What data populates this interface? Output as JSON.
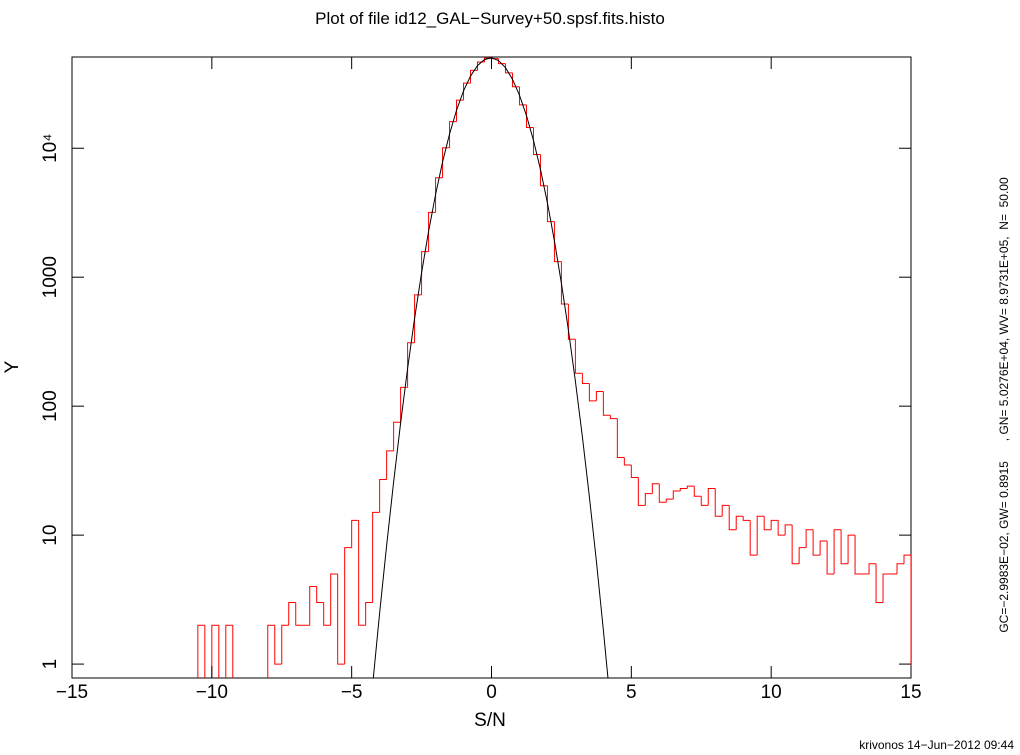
{
  "chart_data": {
    "type": "histogram",
    "title": "Plot of file id12_GAL−Survey+50.spsf.fits.histo",
    "xlabel": "S/N",
    "ylabel": "Y",
    "ylog": true,
    "xlim": [
      -15,
      15
    ],
    "ylim": [
      0.78,
      51000
    ],
    "xticks": [
      {
        "value": -15,
        "label": "−15"
      },
      {
        "value": -10,
        "label": "−10"
      },
      {
        "value": -5,
        "label": "−5"
      },
      0,
      5,
      10,
      15
    ],
    "yticks": [
      1,
      10,
      100,
      1000,
      {
        "value": 10000,
        "label": "10⁴"
      }
    ],
    "color": "#ff0000",
    "bins": [
      -10.5,
      -10.25,
      -10,
      -9.75,
      -9.5,
      -9.25,
      -9,
      -8.75,
      -8.5,
      -8.25,
      -8,
      -7.75,
      -7.5,
      -7.25,
      -7,
      -6.75,
      -6.5,
      -6.25,
      -6,
      -5.75,
      -5.5,
      -5.25,
      -5,
      -4.75,
      -4.5,
      -4.25,
      -4,
      -3.75,
      -3.5,
      -3.25,
      -3,
      -2.75,
      -2.5,
      -2.25,
      -2,
      -1.75,
      -1.5,
      -1.25,
      -1,
      -0.75,
      -0.5,
      -0.25,
      0,
      0.25,
      0.5,
      0.75,
      1,
      1.25,
      1.5,
      1.75,
      2,
      2.25,
      2.5,
      2.75,
      3,
      3.25,
      3.5,
      3.75,
      4,
      4.25,
      4.5,
      4.75,
      5,
      5.25,
      5.5,
      5.75,
      6,
      6.25,
      6.5,
      6.75,
      7,
      7.25,
      7.5,
      7.75,
      8,
      8.25,
      8.5,
      8.75,
      9,
      9.25,
      9.5,
      9.75,
      10,
      10.25,
      10.5,
      10.75,
      11,
      11.25,
      11.5,
      11.75,
      12,
      12.25,
      12.5,
      12.75,
      13,
      13.25,
      13.5,
      13.75,
      14,
      14.25,
      14.5,
      14.75,
      15
    ],
    "values": [
      2,
      0,
      2,
      0,
      2,
      0,
      0,
      0,
      0,
      0,
      2,
      1,
      2,
      3,
      2,
      2,
      4,
      3,
      2,
      5,
      1,
      8,
      13,
      2,
      3,
      15,
      27,
      45,
      75,
      140,
      310,
      730,
      1580,
      3180,
      5900,
      10100,
      16100,
      23600,
      32000,
      40200,
      46600,
      50000,
      49500,
      45300,
      38400,
      30000,
      21700,
      14500,
      8950,
      5120,
      2700,
      1320,
      620,
      330,
      180,
      150,
      110,
      130,
      85,
      80,
      40,
      35,
      28,
      17,
      21,
      25,
      18,
      19,
      22,
      23,
      24,
      20,
      17,
      23,
      14,
      17,
      11,
      14,
      13,
      7,
      14,
      11,
      13,
      10,
      12,
      6,
      8,
      11,
      7,
      9,
      5,
      11,
      6,
      10,
      5,
      5,
      6,
      3,
      5,
      5,
      6,
      7
    ],
    "fit": {
      "type": "line",
      "color": "#000000",
      "x": [
        -4.25,
        -4,
        -3.75,
        -3.5,
        -3.25,
        -3,
        -2.75,
        -2.5,
        -2.25,
        -2,
        -1.75,
        -1.5,
        -1.25,
        -1,
        -0.75,
        -0.5,
        -0.25,
        0,
        0.25,
        0.5,
        0.75,
        1,
        1.25,
        1.5,
        1.75,
        2,
        2.25,
        2.5,
        2.75,
        3,
        3.25,
        3.5,
        3.75,
        4,
        4.25
      ],
      "values": [
        0.69,
        2.49,
        8.3,
        25.8,
        73.9,
        196,
        479,
        1083,
        2265,
        4374,
        7818,
        12906,
        19719,
        27812,
        36290,
        43750,
        48766,
        50248,
        47858,
        42130,
        34290,
        25790,
        17934,
        11528,
        6853,
        3761,
        1911,
        896,
        389,
        156,
        57.8,
        19.8,
        6.3,
        1.83,
        0.5
      ]
    },
    "annotations": [
      "GC=−2.9983E−02, GW= 0.8915      , GN= 5.0276E+04, WV= 8.9731E+05,  N=  50.00",
      "krivonos 14−Jun−2012 09:44"
    ]
  }
}
